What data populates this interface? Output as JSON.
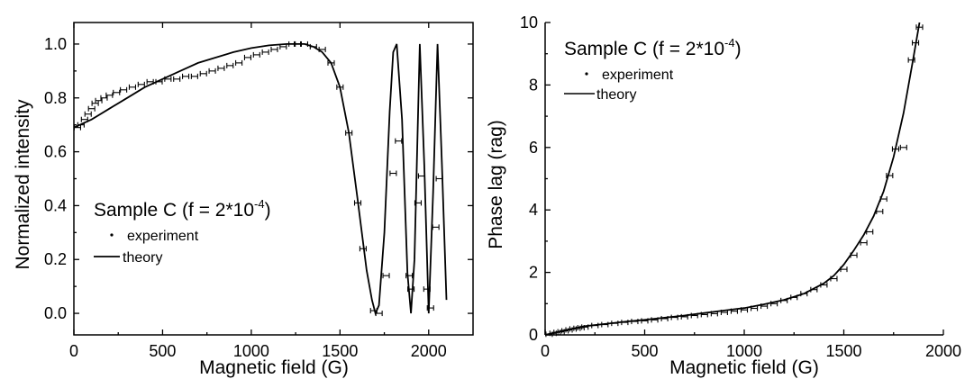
{
  "chart_data": [
    {
      "type": "line",
      "xlabel": "Magnetic field (G)",
      "ylabel": "Normalized  intensity",
      "xlim": [
        0,
        2250
      ],
      "ylim": [
        -0.08,
        1.08
      ],
      "xticks": [
        "0",
        "500",
        "1000",
        "1500",
        "2000"
      ],
      "xtick_values": [
        0,
        500,
        1000,
        1500,
        2000
      ],
      "yticks": [
        "0.0",
        "0.2",
        "0.4",
        "0.6",
        "0.8",
        "1.0"
      ],
      "ytick_values": [
        0.0,
        0.2,
        0.4,
        0.6,
        0.8,
        1.0
      ],
      "legend": {
        "title": "Sample C (f = 2*10",
        "title_sup": "-4",
        "title_end": ")",
        "placement": "lower-left",
        "entries": [
          "experiment",
          "theory"
        ]
      },
      "series": [
        {
          "name": "experiment",
          "style": "points-with-error-bars",
          "x": [
            20,
            40,
            60,
            80,
            100,
            120,
            140,
            170,
            200,
            240,
            280,
            330,
            380,
            430,
            480,
            530,
            580,
            630,
            680,
            730,
            780,
            830,
            880,
            930,
            980,
            1030,
            1080,
            1130,
            1180,
            1230,
            1260,
            1300,
            1350,
            1400,
            1450,
            1500,
            1550,
            1600,
            1630,
            1690,
            1720,
            1760,
            1800,
            1830,
            1890,
            1900,
            1940,
            1960,
            1990,
            2010,
            2040,
            2060
          ],
          "y": [
            0.69,
            0.7,
            0.72,
            0.74,
            0.76,
            0.78,
            0.79,
            0.8,
            0.81,
            0.82,
            0.83,
            0.84,
            0.85,
            0.86,
            0.86,
            0.87,
            0.87,
            0.88,
            0.88,
            0.89,
            0.9,
            0.91,
            0.92,
            0.93,
            0.95,
            0.96,
            0.97,
            0.98,
            0.99,
            1.0,
            1.0,
            1.0,
            0.99,
            0.98,
            0.93,
            0.84,
            0.67,
            0.41,
            0.24,
            0.01,
            0.0,
            0.14,
            0.52,
            0.64,
            0.14,
            0.09,
            0.41,
            0.51,
            0.09,
            0.02,
            0.32,
            0.5
          ]
        },
        {
          "name": "theory",
          "style": "line",
          "x": [
            0,
            100,
            200,
            300,
            400,
            500,
            600,
            700,
            800,
            900,
            1000,
            1100,
            1200,
            1250,
            1300,
            1350,
            1400,
            1450,
            1500,
            1550,
            1600,
            1650,
            1680,
            1700,
            1720,
            1750,
            1780,
            1800,
            1820,
            1850,
            1880,
            1900,
            1920,
            1950,
            1975,
            2000,
            2025,
            2050,
            2075,
            2100
          ],
          "y": [
            0.69,
            0.72,
            0.76,
            0.8,
            0.84,
            0.87,
            0.9,
            0.93,
            0.95,
            0.97,
            0.985,
            0.995,
            1.0,
            1.0,
            1.0,
            0.99,
            0.97,
            0.93,
            0.84,
            0.67,
            0.42,
            0.16,
            0.05,
            0.0,
            0.03,
            0.3,
            0.75,
            0.97,
            1.0,
            0.72,
            0.15,
            0.0,
            0.2,
            1.0,
            0.55,
            0.0,
            0.45,
            1.0,
            0.55,
            0.05
          ]
        }
      ]
    },
    {
      "type": "line",
      "xlabel": "Magnetic field (G)",
      "ylabel": "Phase lag (rag)",
      "xlim": [
        0,
        2000
      ],
      "ylim": [
        0,
        10
      ],
      "xticks": [
        "0",
        "500",
        "1000",
        "1500",
        "2000"
      ],
      "xtick_values": [
        0,
        500,
        1000,
        1500,
        2000
      ],
      "yticks": [
        "0",
        "2",
        "4",
        "6",
        "8",
        "10"
      ],
      "ytick_values": [
        0,
        2,
        4,
        6,
        8,
        10
      ],
      "legend": {
        "title": "Sample C (f = 2*10",
        "title_sup": "-4",
        "title_end": ")",
        "placement": "top-left",
        "entries": [
          "experiment",
          "theory"
        ]
      },
      "series": [
        {
          "name": "experiment",
          "style": "points-with-error-bars",
          "x": [
            20,
            40,
            60,
            80,
            100,
            120,
            140,
            160,
            180,
            200,
            250,
            300,
            350,
            400,
            450,
            500,
            550,
            600,
            650,
            700,
            750,
            800,
            850,
            900,
            950,
            1000,
            1050,
            1100,
            1150,
            1200,
            1250,
            1300,
            1350,
            1400,
            1450,
            1500,
            1550,
            1600,
            1630,
            1680,
            1700,
            1730,
            1760,
            1800,
            1840,
            1860,
            1880
          ],
          "y": [
            0.02,
            0.05,
            0.08,
            0.1,
            0.13,
            0.16,
            0.19,
            0.21,
            0.23,
            0.25,
            0.3,
            0.33,
            0.37,
            0.4,
            0.43,
            0.45,
            0.48,
            0.52,
            0.56,
            0.58,
            0.62,
            0.65,
            0.68,
            0.72,
            0.76,
            0.8,
            0.85,
            0.92,
            1.0,
            1.1,
            1.2,
            1.32,
            1.45,
            1.6,
            1.8,
            2.1,
            2.55,
            2.95,
            3.3,
            3.95,
            4.35,
            5.1,
            5.95,
            6.0,
            8.8,
            9.35,
            9.85
          ]
        },
        {
          "name": "theory",
          "style": "line",
          "x": [
            0,
            100,
            200,
            300,
            400,
            500,
            600,
            700,
            800,
            900,
            1000,
            1100,
            1200,
            1300,
            1400,
            1450,
            1500,
            1550,
            1600,
            1650,
            1700,
            1750,
            1800,
            1850,
            1880
          ],
          "y": [
            0.0,
            0.15,
            0.28,
            0.35,
            0.42,
            0.48,
            0.55,
            0.62,
            0.7,
            0.78,
            0.86,
            0.98,
            1.12,
            1.32,
            1.65,
            1.9,
            2.25,
            2.7,
            3.2,
            3.8,
            4.6,
            5.7,
            7.1,
            8.9,
            10.0
          ]
        }
      ]
    }
  ]
}
